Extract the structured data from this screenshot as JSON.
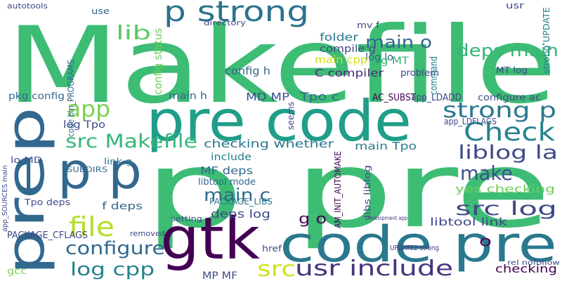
{
  "words": [
    "Makefile",
    "p pre",
    "pre code",
    "code pre",
    "gtk",
    "prep",
    "p p",
    "p strong",
    "Check",
    "strong p",
    "liblog la",
    "src log",
    "make",
    "src Makefile",
    "app",
    "file",
    "configure",
    "log cpp",
    "src",
    "usr include",
    "deps main",
    "main o",
    "lib",
    "main c",
    "checking whether",
    "yes checking",
    "checking",
    "MF deps",
    "deps log",
    "main Tpo",
    "libtool link",
    "C compiler",
    "folder",
    "compile g",
    "config h",
    "AC_SUBST",
    "app_LDADD",
    "Tpo c",
    "MD MP",
    "configure ac",
    "main h",
    "pkg config",
    "include",
    "PACKAGE_CFLAGS",
    "rel nofollow",
    "g o",
    "o",
    "f deps",
    "Tpo deps",
    "SUBDIRS",
    "link g",
    "lo MD",
    "log Tpo",
    "mv f",
    "usr",
    "use",
    "autotools",
    "gcc",
    "MP MF",
    "problem",
    "MT log",
    "log lo",
    "g MT",
    "main cpp",
    "directory",
    "PACKAGE_LIBS",
    "libtool mode",
    "setting",
    "removed",
    "app_LDFLAGS",
    "Development app",
    "UPDATE2 strong",
    "href",
    "command",
    "AM_INIT_AUTOMAKE",
    "code bin_PROGRAMS",
    "config status",
    "seems",
    "libs liblog",
    "strong UPDATE",
    "app_SOURCES main"
  ]
}
